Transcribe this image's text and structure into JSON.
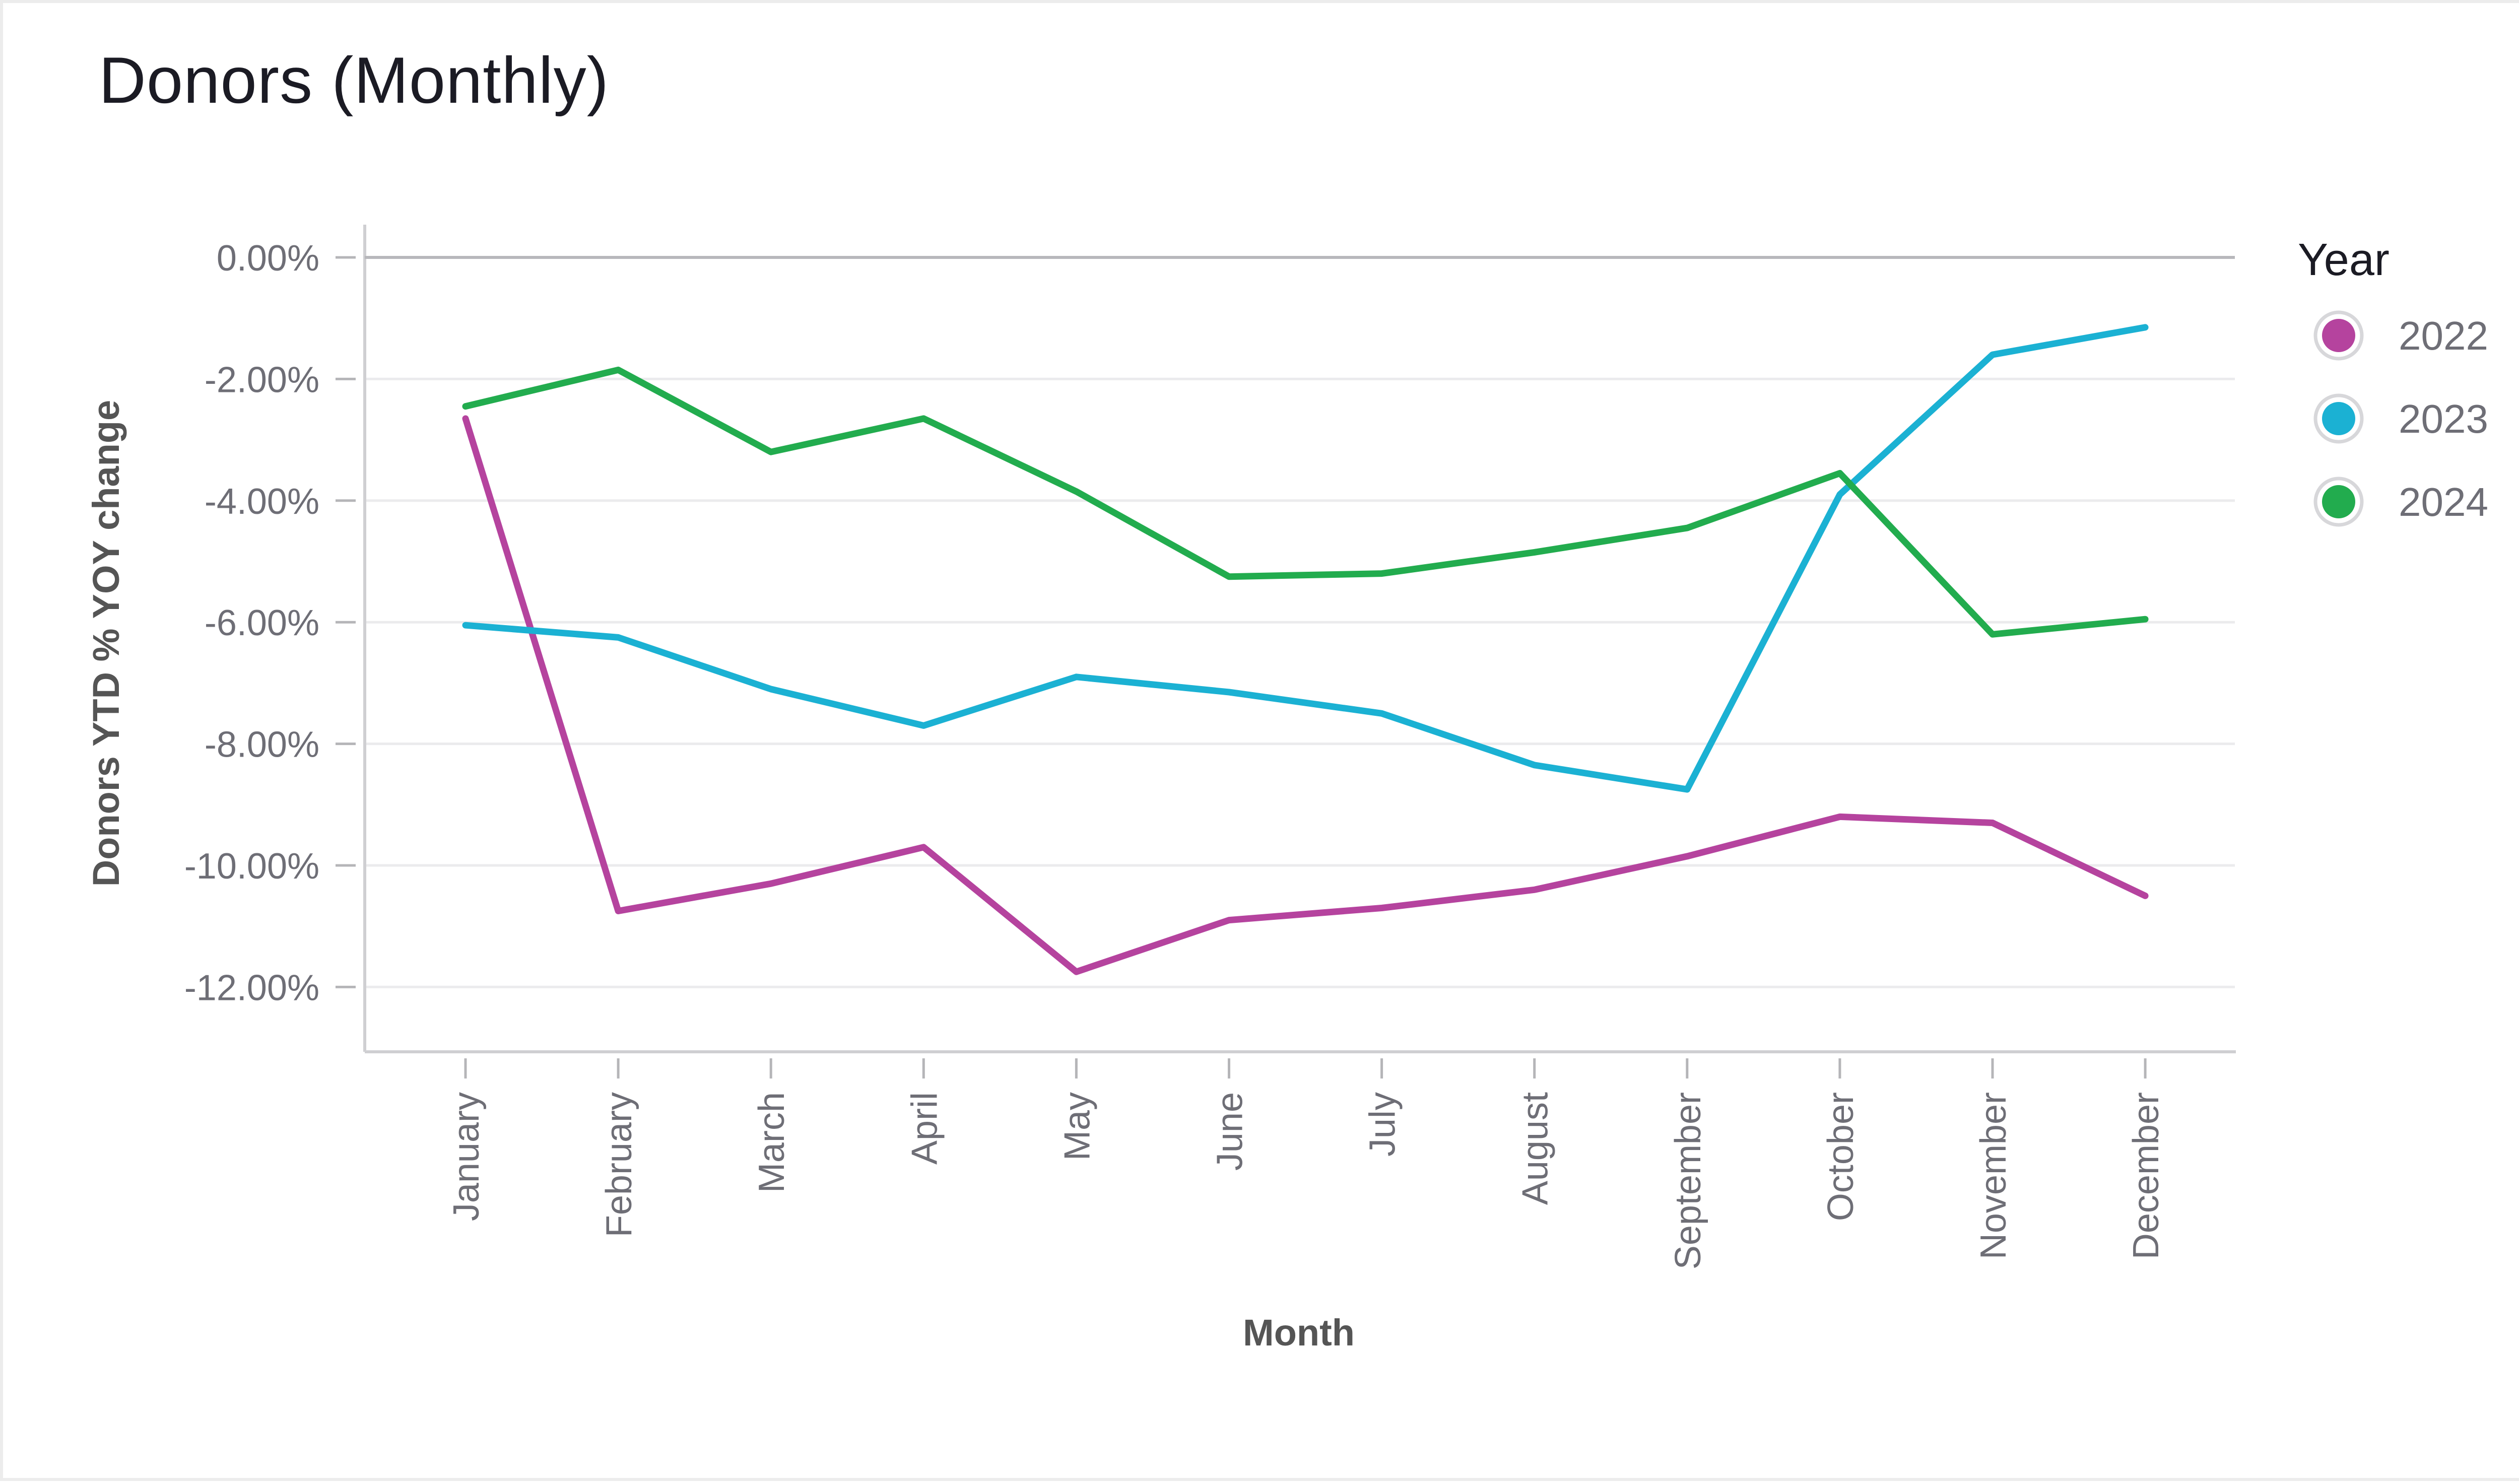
{
  "chart_data": {
    "type": "line",
    "title": "Donors (Monthly)",
    "xlabel": "Month",
    "ylabel": "Donors YTD % YOY change",
    "categories": [
      "January",
      "February",
      "March",
      "April",
      "May",
      "June",
      "July",
      "August",
      "September",
      "October",
      "November",
      "December"
    ],
    "ylim": [
      -13.0,
      0.5
    ],
    "yticks": [
      0,
      -2,
      -4,
      -6,
      -8,
      -10,
      -12
    ],
    "ytick_labels": [
      "0.00%",
      "-2.00%",
      "-4.00%",
      "-6.00%",
      "-8.00%",
      "-10.00%",
      "-12.00%"
    ],
    "grid": true,
    "legend": {
      "title": "Year",
      "position": "right"
    },
    "series": [
      {
        "name": "2022",
        "color": "#b5439e",
        "values": [
          -2.65,
          -10.75,
          -10.3,
          -9.7,
          -11.75,
          -10.9,
          -10.7,
          -10.4,
          -9.85,
          -9.2,
          -9.3,
          -10.5
        ]
      },
      {
        "name": "2023",
        "color": "#1bb1d3",
        "values": [
          -6.05,
          -6.25,
          -7.1,
          -7.7,
          -6.9,
          -7.15,
          -7.5,
          -8.35,
          -8.75,
          -3.9,
          -1.6,
          -1.15
        ]
      },
      {
        "name": "2024",
        "color": "#22ac4e",
        "values": [
          -2.45,
          -1.85,
          -3.2,
          -2.65,
          -3.85,
          -5.25,
          -5.2,
          -4.85,
          -4.45,
          -3.55,
          -6.2,
          -5.95
        ]
      }
    ]
  }
}
